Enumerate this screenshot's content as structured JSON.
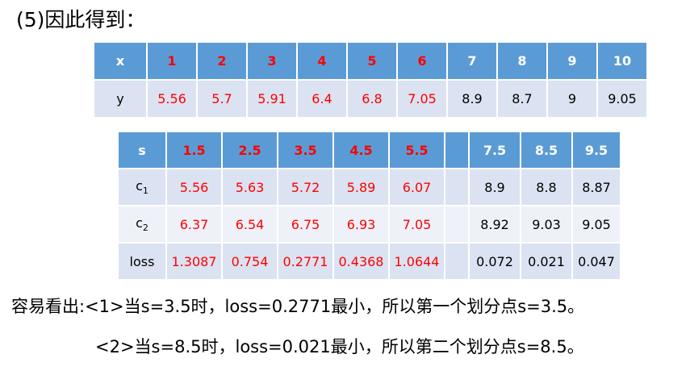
{
  "heading": "(5)因此得到：",
  "table1": {
    "header": [
      "x",
      "1",
      "2",
      "3",
      "4",
      "5",
      "6",
      "7",
      "8",
      "9",
      "10"
    ],
    "row": [
      "y",
      "5.56",
      "5.7",
      "5.91",
      "6.4",
      "6.8",
      "7.05",
      "8.9",
      "8.7",
      "9",
      "9.05"
    ]
  },
  "table2": {
    "header": [
      "s",
      "1.5",
      "2.5",
      "3.5",
      "4.5",
      "5.5",
      "",
      "7.5",
      "8.5",
      "9.5"
    ],
    "c1": {
      "label": "c",
      "sub": "1",
      "values": [
        "5.56",
        "5.63",
        "5.72",
        "5.89",
        "6.07",
        "",
        "8.9",
        "8.8",
        "8.87"
      ]
    },
    "c2": {
      "label": "c",
      "sub": "2",
      "values": [
        "6.37",
        "6.54",
        "6.75",
        "6.93",
        "7.05",
        "",
        "8.92",
        "9.03",
        "9.05"
      ]
    },
    "loss": {
      "label": "loss",
      "values": [
        "1.3087",
        "0.754",
        "0.2771",
        "0.4368",
        "1.0644",
        "",
        "0.072",
        "0.021",
        "0.047"
      ]
    }
  },
  "conclusion": {
    "line1": "容易看出:<1>当s=3.5时，loss=0.2771最小，所以第一个划分点s=3.5。",
    "line2": "<2>当s=8.5时，loss=0.021最小，所以第二个划分点s=8.5。"
  }
}
